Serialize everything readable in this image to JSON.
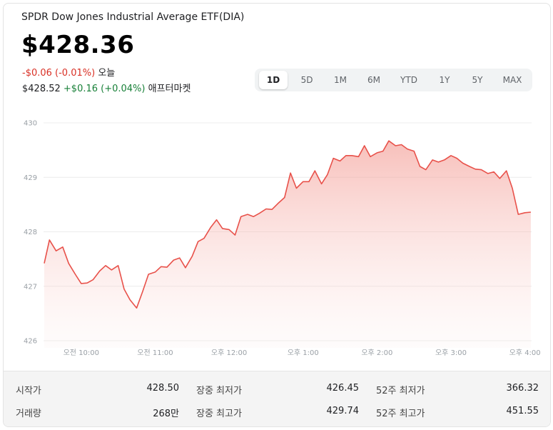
{
  "header": {
    "title": "SPDR Dow Jones Industrial Average ETF(DIA)",
    "price": "$428.36",
    "today_change": "-$0.06 (-0.01%)",
    "today_label": "오늘",
    "after_price": "$428.52",
    "after_change": "+$0.16 (+0.04%)",
    "after_label": "애프터마켓"
  },
  "range_tabs": [
    {
      "label": "1D",
      "active": true
    },
    {
      "label": "5D",
      "active": false
    },
    {
      "label": "1M",
      "active": false
    },
    {
      "label": "6M",
      "active": false
    },
    {
      "label": "YTD",
      "active": false
    },
    {
      "label": "1Y",
      "active": false
    },
    {
      "label": "5Y",
      "active": false
    },
    {
      "label": "MAX",
      "active": false
    }
  ],
  "stats": {
    "open": {
      "label": "시작가",
      "value": "428.50"
    },
    "volume": {
      "label": "거래량",
      "value": "268만"
    },
    "day_low": {
      "label": "장중 최저가",
      "value": "426.45"
    },
    "day_high": {
      "label": "장중 최고가",
      "value": "429.74"
    },
    "wk52_low": {
      "label": "52주 최저가",
      "value": "366.32"
    },
    "wk52_high": {
      "label": "52주 최고가",
      "value": "451.55"
    }
  },
  "colors": {
    "line": "#e8514a",
    "negative": "#d93025",
    "positive": "#188038"
  },
  "chart_data": {
    "type": "area",
    "ylim": [
      426,
      430
    ],
    "y_ticks": [
      "430",
      "429",
      "428",
      "427",
      "426"
    ],
    "y_tick_values": [
      430,
      429,
      428,
      427,
      426
    ],
    "x_ticks": [
      "오전 10:00",
      "오전 11:00",
      "오후 12:00",
      "오후 1:00",
      "오후 2:00",
      "오후 3:00",
      "오후 4:00"
    ],
    "x_tick_values": [
      10,
      11,
      12,
      13,
      14,
      15,
      16
    ],
    "xlim": [
      9.5,
      16.1
    ],
    "grid": true,
    "series": [
      {
        "x": [
          9.5,
          9.57,
          9.66,
          9.75,
          9.83,
          9.92,
          10.0,
          10.08,
          10.16,
          10.25,
          10.33,
          10.41,
          10.5,
          10.58,
          10.66,
          10.75,
          10.83,
          10.91,
          11.0,
          11.08,
          11.16,
          11.25,
          11.33,
          11.41,
          11.5,
          11.58,
          11.66,
          11.75,
          11.83,
          11.91,
          12.0,
          12.08,
          12.16,
          12.25,
          12.33,
          12.41,
          12.5,
          12.58,
          12.66,
          12.75,
          12.83,
          12.91,
          13.0,
          13.08,
          13.16,
          13.25,
          13.33,
          13.41,
          13.5,
          13.58,
          13.66,
          13.75,
          13.83,
          13.91,
          14.0,
          14.08,
          14.16,
          14.25,
          14.33,
          14.41,
          14.5,
          14.58,
          14.66,
          14.75,
          14.83,
          14.91,
          15.0,
          15.08,
          15.16,
          15.25,
          15.33,
          15.41,
          15.5,
          15.58,
          15.66,
          15.75,
          15.83,
          15.91,
          16.0,
          16.08
        ],
        "y": [
          427.42,
          427.85,
          427.65,
          427.72,
          427.42,
          427.22,
          427.05,
          427.06,
          427.12,
          427.28,
          427.38,
          427.3,
          427.38,
          426.95,
          426.75,
          426.6,
          426.9,
          427.22,
          427.26,
          427.36,
          427.35,
          427.48,
          427.52,
          427.34,
          427.55,
          427.82,
          427.88,
          428.08,
          428.22,
          428.06,
          428.04,
          427.94,
          428.28,
          428.32,
          428.28,
          428.34,
          428.42,
          428.41,
          428.52,
          428.63,
          429.08,
          428.8,
          428.92,
          428.92,
          429.12,
          428.88,
          429.05,
          429.35,
          429.3,
          429.4,
          429.4,
          429.38,
          429.58,
          429.38,
          429.45,
          429.48,
          429.67,
          429.58,
          429.6,
          429.52,
          429.48,
          429.2,
          429.14,
          429.32,
          429.28,
          429.32,
          429.4,
          429.35,
          429.26,
          429.2,
          429.15,
          429.14,
          429.07,
          429.1,
          428.98,
          429.12,
          428.8,
          428.32,
          428.35,
          428.36
        ]
      }
    ]
  }
}
